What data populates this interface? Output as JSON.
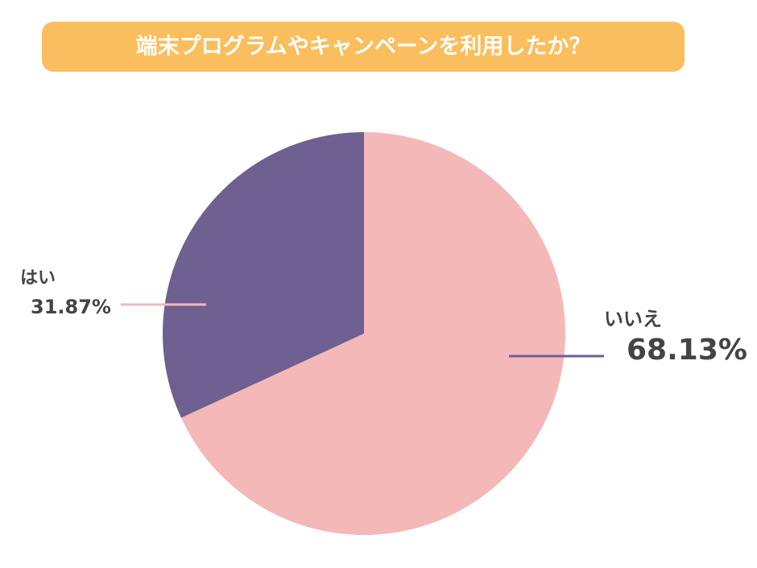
{
  "chart_data": {
    "type": "pie",
    "title": "端末プログラムやキャンペーンを利用したか？",
    "categories": [
      "いいえ",
      "はい"
    ],
    "values": [
      68.13,
      31.87
    ],
    "value_labels": [
      "68.13%",
      "31.87%"
    ],
    "colors": [
      "#f4b8b9",
      "#6e6090"
    ]
  }
}
